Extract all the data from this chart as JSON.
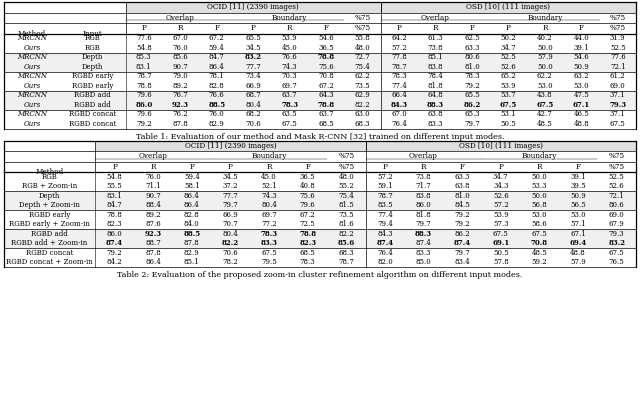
{
  "table1": {
    "caption": "Table 1: Evaluation of our method and Mask R-CNN [32] trained on different input modes.",
    "groups": [
      {
        "rows": [
          [
            "MRCNN",
            "RGB",
            "77.6",
            "67.0",
            "67.2",
            "65.5",
            "53.9",
            "54.6",
            "55.8",
            "64.2",
            "61.3",
            "62.5",
            "50.2",
            "40.2",
            "44.0",
            "31.9"
          ],
          [
            "Ours",
            "RGB",
            "54.8",
            "76.0",
            "59.4",
            "34.5",
            "45.0",
            "36.5",
            "48.0",
            "57.2",
            "73.8",
            "63.3",
            "34.7",
            "50.0",
            "39.1",
            "52.5"
          ]
        ],
        "bold": [
          [
            false,
            false,
            false,
            false,
            false,
            false,
            false,
            false,
            false,
            false,
            false,
            false,
            false,
            false
          ],
          [
            false,
            false,
            false,
            false,
            false,
            false,
            false,
            false,
            false,
            false,
            false,
            false,
            false,
            false
          ]
        ]
      },
      {
        "rows": [
          [
            "MRCNN",
            "Depth",
            "85.3",
            "85.6",
            "84.7",
            "83.2",
            "76.6",
            "78.8",
            "72.7",
            "77.8",
            "85.1",
            "80.6",
            "52.5",
            "57.9",
            "54.6",
            "77.6"
          ],
          [
            "Ours",
            "Depth",
            "83.1",
            "90.7",
            "86.4",
            "77.7",
            "74.3",
            "75.6",
            "75.4",
            "78.7",
            "83.8",
            "81.0",
            "52.6",
            "50.0",
            "50.9",
            "72.1"
          ]
        ],
        "bold": [
          [
            false,
            false,
            false,
            true,
            false,
            true,
            false,
            false,
            false,
            false,
            false,
            false,
            false,
            false
          ],
          [
            false,
            false,
            false,
            false,
            false,
            false,
            false,
            false,
            false,
            false,
            false,
            false,
            false,
            false
          ]
        ]
      },
      {
        "rows": [
          [
            "MRCNN",
            "RGBD early",
            "78.7",
            "79.0",
            "78.1",
            "73.4",
            "70.3",
            "70.8",
            "62.2",
            "78.3",
            "78.4",
            "78.3",
            "65.2",
            "62.2",
            "63.2",
            "61.2"
          ],
          [
            "Ours",
            "RGBD early",
            "78.8",
            "89.2",
            "82.8",
            "66.9",
            "69.7",
            "67.2",
            "73.5",
            "77.4",
            "81.8",
            "79.2",
            "53.9",
            "53.0",
            "53.0",
            "69.0"
          ]
        ],
        "bold": [
          [
            false,
            false,
            false,
            false,
            false,
            false,
            false,
            false,
            false,
            false,
            false,
            false,
            false,
            false
          ],
          [
            false,
            false,
            false,
            false,
            false,
            false,
            false,
            false,
            false,
            false,
            false,
            false,
            false,
            false
          ]
        ]
      },
      {
        "rows": [
          [
            "MRCNN",
            "RGBD add",
            "79.6",
            "76.7",
            "76.6",
            "68.7",
            "63.7",
            "64.3",
            "62.9",
            "66.4",
            "64.8",
            "65.5",
            "53.7",
            "43.8",
            "47.5",
            "37.1"
          ],
          [
            "Ours",
            "RGBD add",
            "86.0",
            "92.3",
            "88.5",
            "80.4",
            "78.3",
            "78.8",
            "82.2",
            "84.3",
            "88.3",
            "86.2",
            "67.5",
            "67.5",
            "67.1",
            "79.3"
          ]
        ],
        "bold": [
          [
            false,
            false,
            false,
            false,
            false,
            false,
            false,
            false,
            false,
            false,
            false,
            false,
            false,
            false
          ],
          [
            true,
            true,
            true,
            false,
            true,
            true,
            false,
            true,
            true,
            true,
            true,
            true,
            true,
            true
          ]
        ]
      },
      {
        "rows": [
          [
            "MRCNN",
            "RGBD concat",
            "79.6",
            "76.2",
            "76.0",
            "68.2",
            "63.5",
            "63.7",
            "63.0",
            "67.0",
            "63.8",
            "65.3",
            "53.1",
            "42.7",
            "46.5",
            "37.1"
          ],
          [
            "Ours",
            "RGBD concat",
            "79.2",
            "87.8",
            "82.9",
            "70.6",
            "67.5",
            "68.5",
            "68.3",
            "76.4",
            "83.3",
            "79.7",
            "50.5",
            "48.5",
            "48.8",
            "67.5"
          ]
        ],
        "bold": [
          [
            false,
            false,
            false,
            false,
            false,
            false,
            false,
            false,
            false,
            false,
            false,
            false,
            false,
            false
          ],
          [
            false,
            false,
            false,
            false,
            false,
            false,
            false,
            false,
            false,
            false,
            false,
            false,
            false,
            false
          ]
        ]
      }
    ]
  },
  "table2": {
    "caption": "Table 2: Evaluation of the proposed zoom-in cluster refinement algorithm on different input modes.",
    "groups": [
      {
        "rows": [
          [
            "RGB",
            "54.8",
            "76.0",
            "59.4",
            "34.5",
            "45.0",
            "36.5",
            "48.0",
            "57.2",
            "73.8",
            "63.3",
            "34.7",
            "50.0",
            "39.1",
            "52.5"
          ],
          [
            "RGB + Zoom-in",
            "55.5",
            "71.1",
            "58.1",
            "37.2",
            "52.1",
            "40.8",
            "55.2",
            "59.1",
            "71.7",
            "63.8",
            "34.3",
            "53.3",
            "39.5",
            "52.6"
          ]
        ],
        "bold": [
          [
            false,
            false,
            false,
            false,
            false,
            false,
            false,
            false,
            false,
            false,
            false,
            false,
            false,
            false
          ],
          [
            false,
            false,
            false,
            false,
            false,
            false,
            false,
            false,
            false,
            false,
            false,
            false,
            false,
            false
          ]
        ]
      },
      {
        "rows": [
          [
            "Depth",
            "83.1",
            "90.7",
            "86.4",
            "77.7",
            "74.3",
            "75.6",
            "75.4",
            "78.7",
            "83.8",
            "81.0",
            "52.6",
            "50.0",
            "50.9",
            "72.1"
          ],
          [
            "Depth + Zoom-in",
            "84.7",
            "88.4",
            "86.4",
            "79.7",
            "80.4",
            "79.6",
            "81.5",
            "83.5",
            "86.0",
            "84.5",
            "57.2",
            "56.8",
            "56.5",
            "80.6"
          ]
        ],
        "bold": [
          [
            false,
            false,
            false,
            false,
            false,
            false,
            false,
            false,
            false,
            false,
            false,
            false,
            false,
            false
          ],
          [
            false,
            false,
            false,
            false,
            false,
            false,
            false,
            false,
            false,
            false,
            false,
            false,
            false,
            false
          ]
        ]
      },
      {
        "rows": [
          [
            "RGBD early",
            "78.8",
            "89.2",
            "82.8",
            "66.9",
            "69.7",
            "67.2",
            "73.5",
            "77.4",
            "81.8",
            "79.2",
            "53.9",
            "53.0",
            "53.0",
            "69.0"
          ],
          [
            "RGBD early + Zoom-in",
            "82.3",
            "87.6",
            "84.0",
            "70.7",
            "77.2",
            "72.5",
            "81.6",
            "79.4",
            "79.7",
            "79.2",
            "57.3",
            "58.6",
            "57.1",
            "67.9"
          ]
        ],
        "bold": [
          [
            false,
            false,
            false,
            false,
            false,
            false,
            false,
            false,
            false,
            false,
            false,
            false,
            false,
            false
          ],
          [
            false,
            false,
            false,
            false,
            false,
            false,
            false,
            false,
            false,
            false,
            false,
            false,
            false,
            false
          ]
        ]
      },
      {
        "rows": [
          [
            "RGBD add",
            "86.0",
            "92.3",
            "88.5",
            "80.4",
            "78.3",
            "78.8",
            "82.2",
            "84.3",
            "88.3",
            "86.2",
            "67.5",
            "67.5",
            "67.1",
            "79.3"
          ],
          [
            "RGBD add + Zoom-in",
            "87.4",
            "88.7",
            "87.8",
            "82.2",
            "83.3",
            "82.3",
            "85.6",
            "87.4",
            "87.4",
            "87.4",
            "69.1",
            "70.8",
            "69.4",
            "83.2"
          ]
        ],
        "bold": [
          [
            false,
            true,
            true,
            false,
            true,
            true,
            false,
            false,
            true,
            false,
            false,
            false,
            false,
            false
          ],
          [
            true,
            false,
            false,
            true,
            true,
            true,
            true,
            true,
            false,
            true,
            true,
            true,
            true,
            true
          ]
        ]
      },
      {
        "rows": [
          [
            "RGBD concat",
            "79.2",
            "87.8",
            "82.9",
            "70.6",
            "67.5",
            "68.5",
            "68.3",
            "76.4",
            "83.3",
            "79.7",
            "50.5",
            "48.5",
            "48.8",
            "67.5"
          ],
          [
            "RGBD concat + Zoom-in",
            "84.2",
            "86.4",
            "85.1",
            "78.2",
            "79.5",
            "78.3",
            "78.7",
            "82.0",
            "85.0",
            "83.4",
            "57.8",
            "59.2",
            "57.9",
            "76.5"
          ]
        ],
        "bold": [
          [
            false,
            false,
            false,
            false,
            false,
            false,
            false,
            false,
            false,
            false,
            false,
            false,
            false,
            false
          ],
          [
            false,
            false,
            false,
            false,
            false,
            false,
            false,
            false,
            false,
            false,
            false,
            false,
            false,
            false
          ]
        ]
      }
    ]
  }
}
